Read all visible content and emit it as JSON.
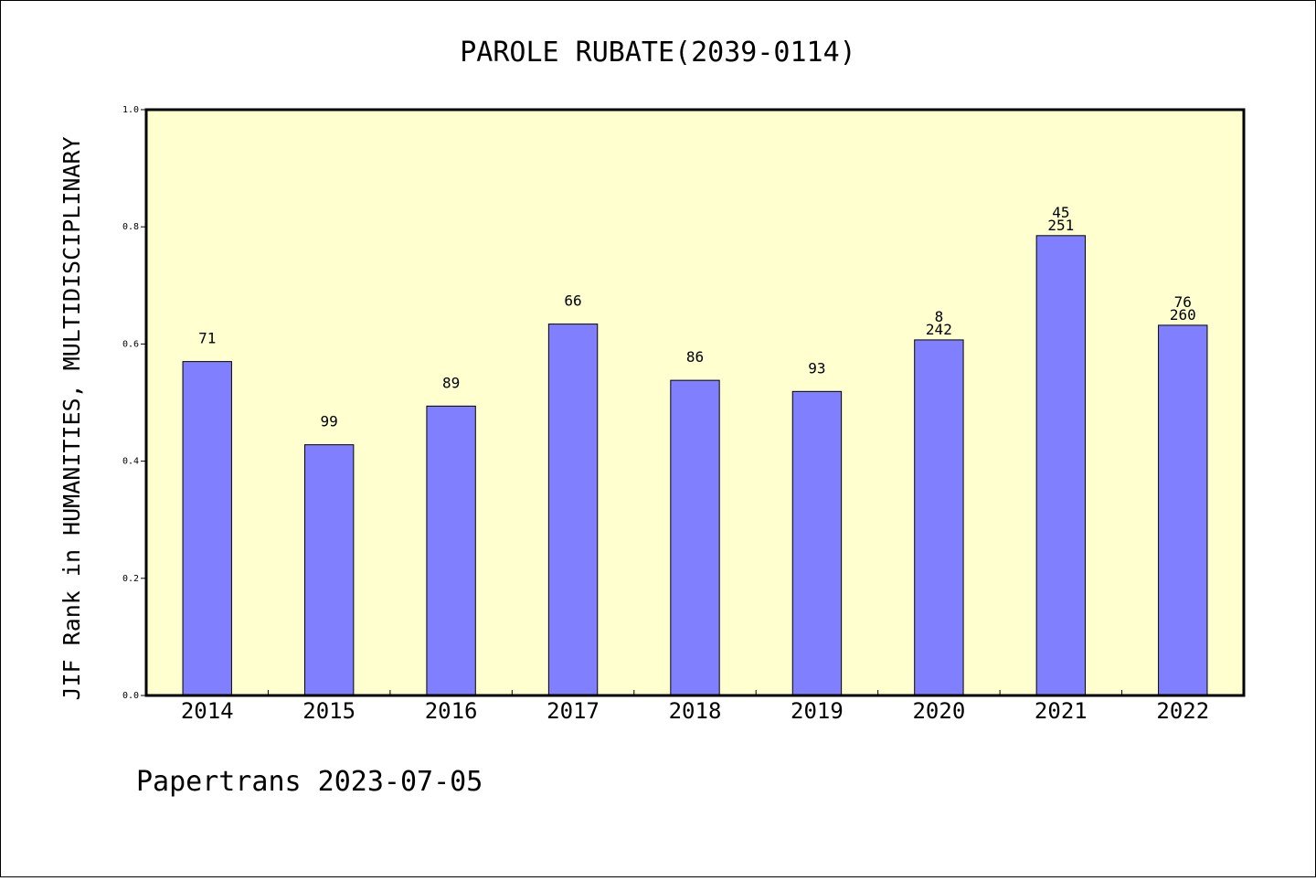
{
  "chart_data": {
    "type": "bar",
    "title": "PAROLE RUBATE(2039-0114)",
    "xlabel": "",
    "ylabel": "JIF Rank in HUMANITIES, MULTIDISCIPLINARY",
    "ylim": [
      0,
      1.0
    ],
    "yticks": [
      "0.0",
      "0.2",
      "0.4",
      "0.6",
      "0.8",
      "1.0"
    ],
    "grid": false,
    "colors": {
      "bar": "#8080ff",
      "plot_background": "#ffffd0",
      "bar_edge": "#000000"
    },
    "categories": [
      "2014",
      "2015",
      "2016",
      "2017",
      "2018",
      "2019",
      "2020",
      "2021",
      "2022"
    ],
    "values": [
      0.57,
      0.428,
      0.494,
      0.634,
      0.538,
      0.519,
      0.607,
      0.785,
      0.632
    ],
    "labels": [
      [
        "71"
      ],
      [
        "99"
      ],
      [
        "89"
      ],
      [
        "66"
      ],
      [
        "86"
      ],
      [
        "93"
      ],
      [
        "8",
        "242"
      ],
      [
        "45",
        "251"
      ],
      [
        "76",
        "260"
      ]
    ]
  },
  "footer": "Papertrans 2023-07-05"
}
